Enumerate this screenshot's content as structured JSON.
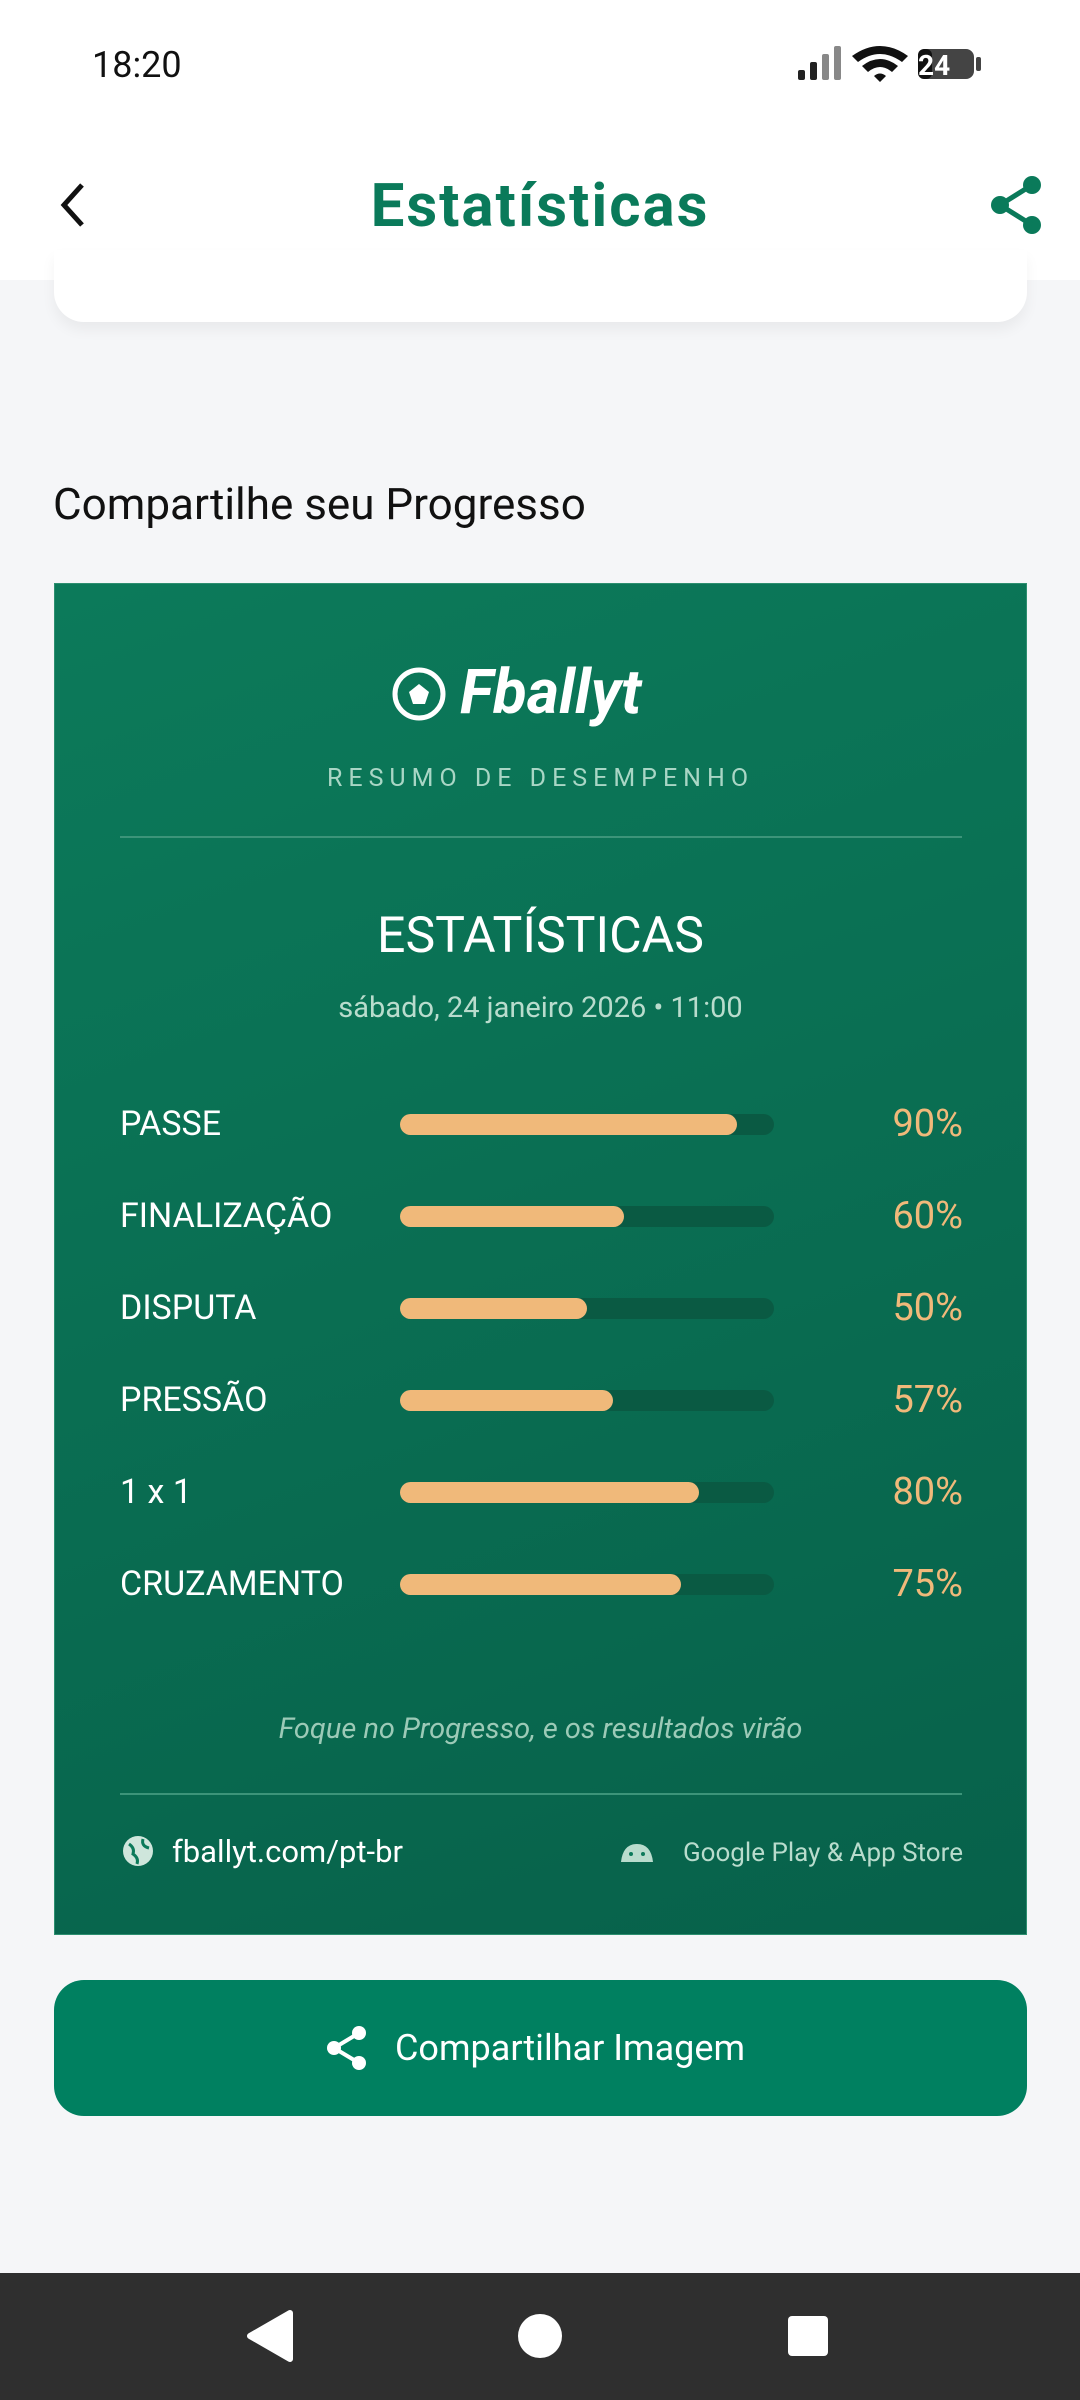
{
  "status_bar": {
    "time": "18:20",
    "battery": "24"
  },
  "header": {
    "title": "Estatísticas"
  },
  "section_title": "Compartilhe seu Progresso",
  "card": {
    "brand": "Fballyt",
    "subtitle": "RESUMO DE DESEMPENHO",
    "heading": "ESTATÍSTICAS",
    "date": "sábado, 24 janeiro 2026 • 11:00",
    "stats": [
      {
        "label": "PASSE",
        "value": 90,
        "value_label": "90%"
      },
      {
        "label": "FINALIZAÇÃO",
        "value": 60,
        "value_label": "60%"
      },
      {
        "label": "DISPUTA",
        "value": 50,
        "value_label": "50%"
      },
      {
        "label": "PRESSÃO",
        "value": 57,
        "value_label": "57%"
      },
      {
        "label": "1 x 1",
        "value": 80,
        "value_label": "80%"
      },
      {
        "label": "CRUZAMENTO",
        "value": 75,
        "value_label": "75%"
      }
    ],
    "quote": "Foque no Progresso, e os resultados virão",
    "website": "fballyt.com/pt-br",
    "stores": "Google Play & App Store"
  },
  "share_button": "Compartilhar Imagem"
}
